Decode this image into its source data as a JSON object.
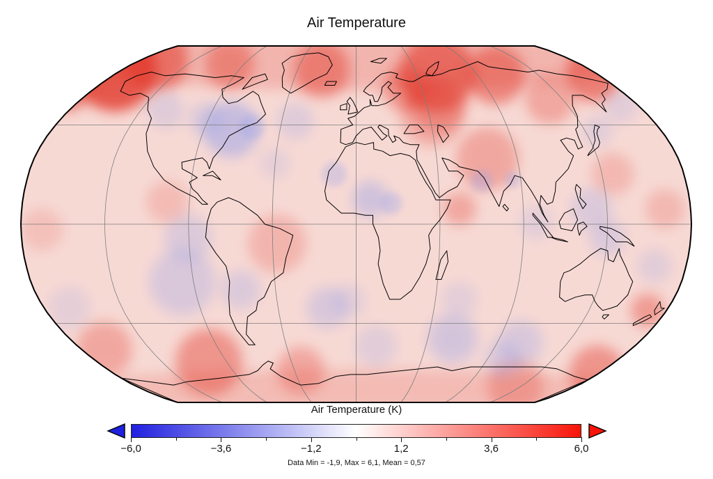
{
  "title": "Air Temperature",
  "colorbar": {
    "label": "Air Temperature (K)",
    "min": -6,
    "max": 6,
    "tick_labels": [
      "−6,0",
      "−3,6",
      "−1,2",
      "1,2",
      "3,6",
      "6,0"
    ],
    "tick_values": [
      -6,
      -3.6,
      -1.2,
      1.2,
      3.6,
      6
    ],
    "minor_tick_values": [
      -4.8,
      -2.4,
      0,
      2.4,
      4.8
    ],
    "colors": {
      "min": "#2020df",
      "mid": "#ffffff",
      "max": "#f81408"
    }
  },
  "stats_line": "Data Min = -1,9, Max = 6,1, Mean = 0,57",
  "stats": {
    "data_min": "-1,9",
    "data_max": "6,1",
    "mean": "0,57"
  },
  "map": {
    "projection": "robinson",
    "graticule_step_deg": 45,
    "base_color": "#f7d9d4",
    "warm_color": "#e2372b",
    "cool_color": "#96a0e8",
    "outline_color": "#000000",
    "graticule_color": "#7d7d7d"
  },
  "chart_data": {
    "type": "heatmap",
    "title": "Air Temperature",
    "colorbar_label": "Air Temperature (K)",
    "units": "K",
    "projection": "robinson",
    "scale_min": -6.0,
    "scale_max": 6.0,
    "scale_ticks": [
      -6.0,
      -3.6,
      -1.2,
      1.2,
      3.6,
      6.0
    ],
    "palette": [
      "#2020df",
      "#ffffff",
      "#f81408"
    ],
    "data_min": -1.9,
    "data_max": 6.1,
    "data_mean": 0.57,
    "decimal_separator": ","
  }
}
